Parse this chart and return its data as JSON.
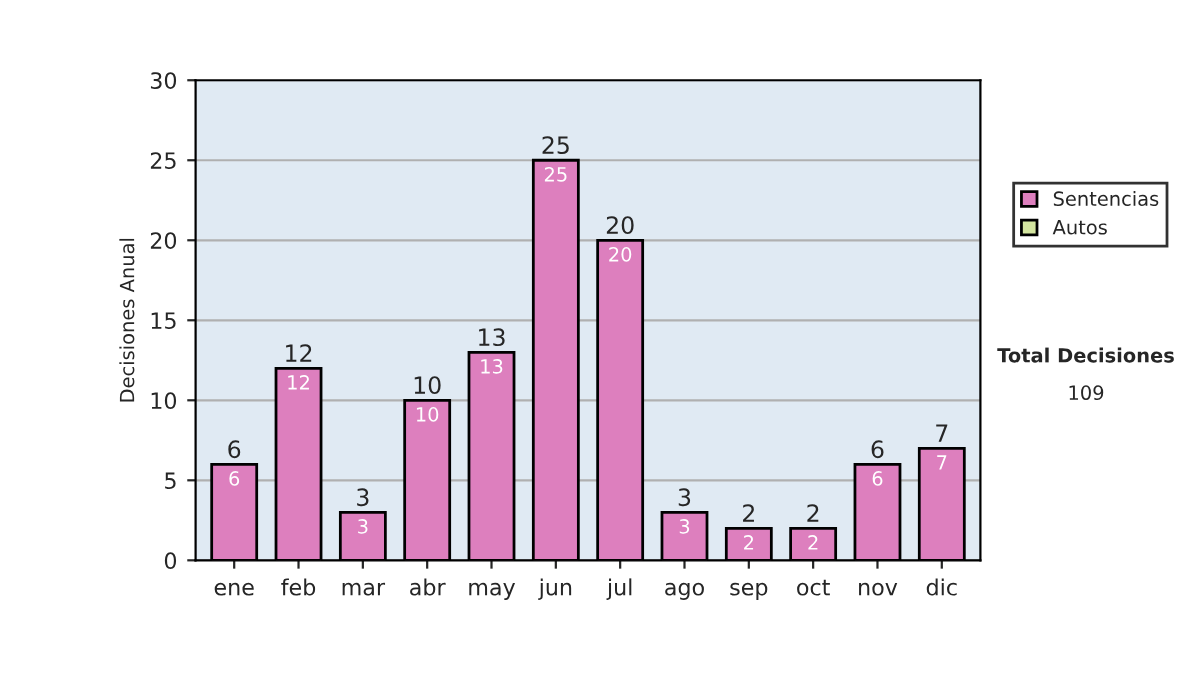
{
  "chart_data": {
    "type": "bar",
    "stacked": true,
    "ylabel": "Decisiones Anual",
    "categories": [
      "ene",
      "feb",
      "mar",
      "abr",
      "may",
      "jun",
      "jul",
      "ago",
      "sep",
      "oct",
      "nov",
      "dic"
    ],
    "series": [
      {
        "name": "Sentencias",
        "color": "#dd7fbe",
        "values": [
          6,
          12,
          3,
          10,
          13,
          25,
          20,
          3,
          2,
          2,
          6,
          7
        ],
        "value_labels": [
          "6",
          "12",
          "3",
          "10",
          "13",
          "25",
          "20",
          "3",
          "2",
          "2",
          "6",
          "7"
        ]
      },
      {
        "name": "Autos",
        "color": "#d4e6a0",
        "values": [
          null,
          null,
          null,
          null,
          null,
          null,
          null,
          null,
          null,
          null,
          null,
          null
        ]
      }
    ],
    "totals": [
      "6",
      "12",
      "3",
      "10",
      "13",
      "25",
      "20",
      "3",
      "2",
      "2",
      "6",
      "7"
    ],
    "ylim": [
      0,
      30
    ],
    "yticks": [
      0,
      5,
      10,
      15,
      20,
      25,
      30
    ],
    "grid": "y",
    "legend": "right",
    "annotations": [
      "Total Decisiones",
      "109"
    ]
  }
}
